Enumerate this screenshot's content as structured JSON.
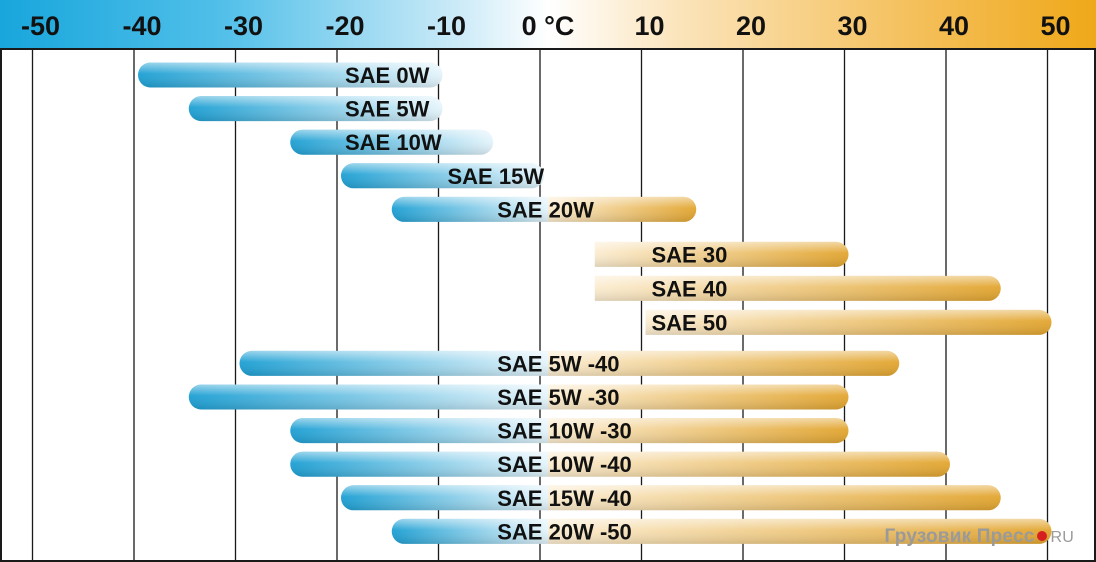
{
  "chart_data": {
    "type": "range-bar",
    "xlim": [
      -55,
      52
    ],
    "ticks": [
      {
        "value": -50,
        "label": "-50"
      },
      {
        "value": -40,
        "label": "-40"
      },
      {
        "value": -30,
        "label": "-30"
      },
      {
        "value": -20,
        "label": "-20"
      },
      {
        "value": -10,
        "label": "-10"
      },
      {
        "value": 0,
        "label": "0 °C"
      },
      {
        "value": 10,
        "label": "10"
      },
      {
        "value": 20,
        "label": "20"
      },
      {
        "value": 30,
        "label": "30"
      },
      {
        "value": 40,
        "label": "40"
      },
      {
        "value": 50,
        "label": "50"
      }
    ],
    "grid": true,
    "bars": [
      {
        "label": "SAE 0W",
        "from": -40,
        "to": -10,
        "group": "winter"
      },
      {
        "label": "SAE 5W",
        "from": -35,
        "to": -10,
        "group": "winter"
      },
      {
        "label": "SAE 10W",
        "from": -25,
        "to": -5,
        "group": "winter"
      },
      {
        "label": "SAE 15W",
        "from": -20,
        "to": 0,
        "group": "winter"
      },
      {
        "label": "SAE 20W",
        "from": -15,
        "to": 15,
        "group": "winter"
      },
      {
        "label": "SAE 30",
        "from": 5,
        "to": 30,
        "group": "summer"
      },
      {
        "label": "SAE 40",
        "from": 5,
        "to": 45,
        "group": "summer"
      },
      {
        "label": "SAE 50",
        "from": 10,
        "to": 50,
        "group": "summer"
      },
      {
        "label": "SAE 5W -40",
        "from": -30,
        "to": 35,
        "group": "multigrade"
      },
      {
        "label": "SAE 5W -30",
        "from": -35,
        "to": 30,
        "group": "multigrade"
      },
      {
        "label": "SAE 10W -30",
        "from": -25,
        "to": 30,
        "group": "multigrade"
      },
      {
        "label": "SAE 10W -40",
        "from": -25,
        "to": 40,
        "group": "multigrade"
      },
      {
        "label": "SAE 15W -40",
        "from": -20,
        "to": 45,
        "group": "multigrade"
      },
      {
        "label": "SAE 20W -50",
        "from": -15,
        "to": 50,
        "group": "multigrade"
      }
    ]
  },
  "colors": {
    "cold": "#1c9fd3",
    "cold_light": "#e4f4fb",
    "warm": "#e2a52f",
    "warm_light": "#fbecd0",
    "grid": "#1a1a1a"
  },
  "watermark": {
    "text": "Грузовик Пресс",
    "suffix": "RU"
  }
}
